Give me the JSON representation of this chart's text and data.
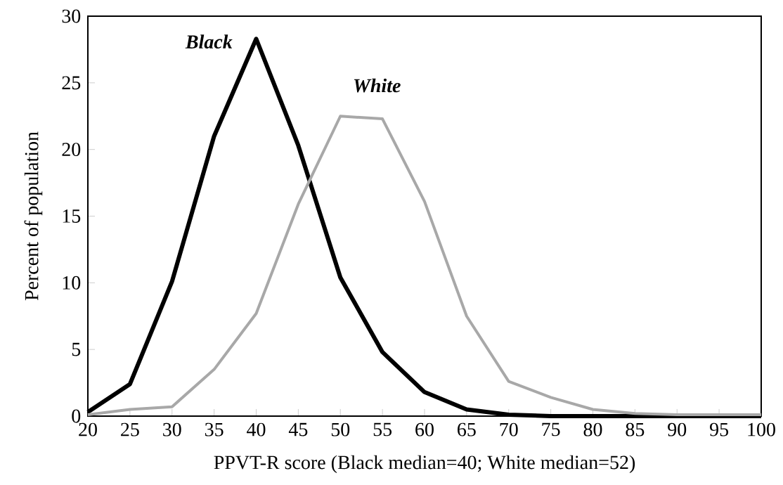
{
  "chart_data": {
    "type": "line",
    "xlabel": "PPVT-R score (Black median=40; White median=52)",
    "ylabel": "Percent of population",
    "x": [
      20,
      25,
      30,
      35,
      40,
      45,
      50,
      55,
      60,
      65,
      70,
      75,
      80,
      85,
      90,
      95,
      100
    ],
    "series": [
      {
        "name": "Black",
        "color": "#000000",
        "values": [
          0.3,
          2.4,
          10.1,
          21.0,
          28.3,
          20.3,
          10.4,
          4.8,
          1.8,
          0.5,
          0.1,
          0,
          0,
          0,
          0,
          0,
          0
        ]
      },
      {
        "name": "White",
        "color": "#a8a8a8",
        "values": [
          0.1,
          0.5,
          0.7,
          3.5,
          7.7,
          15.9,
          22.5,
          22.3,
          16.1,
          7.5,
          2.6,
          1.4,
          0.5,
          0.2,
          0.1,
          0.1,
          0.1
        ]
      }
    ],
    "xlim": [
      20,
      100
    ],
    "ylim": [
      0,
      30
    ],
    "xticks": [
      20,
      25,
      30,
      35,
      40,
      45,
      50,
      55,
      60,
      65,
      70,
      75,
      80,
      85,
      90,
      95,
      100
    ],
    "yticks": [
      0,
      5,
      10,
      15,
      20,
      25,
      30
    ],
    "legend": false,
    "grid": false
  }
}
